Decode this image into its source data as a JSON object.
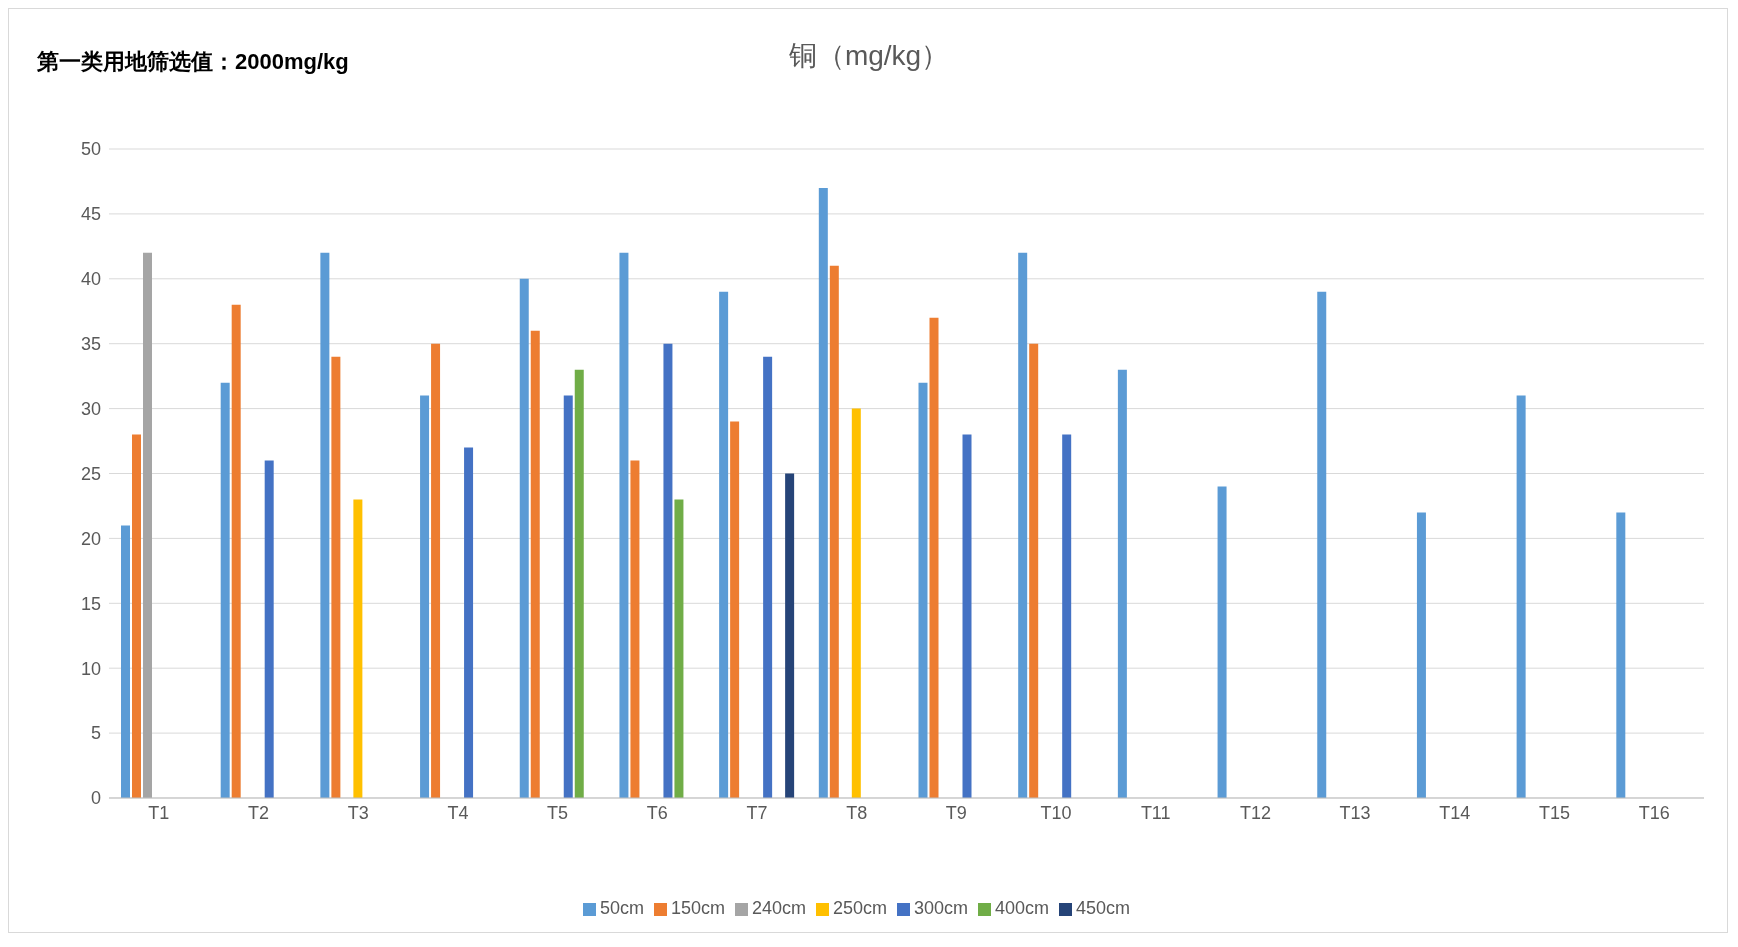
{
  "chart_data": {
    "type": "bar",
    "title": "铜（mg/kg）",
    "annotations": [
      "第一类用地筛选值：2000mg/kg"
    ],
    "categories": [
      "T1",
      "T2",
      "T3",
      "T4",
      "T5",
      "T6",
      "T7",
      "T8",
      "T9",
      "T10",
      "T11",
      "T12",
      "T13",
      "T14",
      "T15",
      "T16"
    ],
    "series": [
      {
        "name": "50cm",
        "color": "#5b9bd5",
        "values": [
          21,
          32,
          42,
          31,
          40,
          42,
          39,
          47,
          32,
          42,
          33,
          24,
          39,
          22,
          31,
          22
        ]
      },
      {
        "name": "150cm",
        "color": "#ed7d31",
        "values": [
          28,
          38,
          34,
          35,
          36,
          26,
          29,
          41,
          37,
          35,
          null,
          null,
          null,
          null,
          null,
          null
        ]
      },
      {
        "name": "240cm",
        "color": "#a5a5a5",
        "values": [
          42,
          null,
          null,
          null,
          null,
          null,
          null,
          null,
          null,
          null,
          null,
          null,
          null,
          null,
          null,
          null
        ]
      },
      {
        "name": "250cm",
        "color": "#ffc000",
        "values": [
          null,
          null,
          23,
          null,
          null,
          null,
          null,
          30,
          null,
          null,
          null,
          null,
          null,
          null,
          null,
          null
        ]
      },
      {
        "name": "300cm",
        "color": "#4472c4",
        "values": [
          null,
          26,
          null,
          27,
          31,
          35,
          34,
          null,
          28,
          28,
          null,
          null,
          null,
          null,
          null,
          null
        ]
      },
      {
        "name": "400cm",
        "color": "#70ad47",
        "values": [
          null,
          null,
          null,
          null,
          33,
          23,
          null,
          null,
          null,
          null,
          null,
          null,
          null,
          null,
          null,
          null
        ]
      },
      {
        "name": "450cm",
        "color": "#264478",
        "values": [
          null,
          null,
          null,
          null,
          null,
          null,
          25,
          null,
          null,
          null,
          null,
          null,
          null,
          null,
          null,
          null
        ]
      }
    ],
    "ylim": [
      0,
      50
    ],
    "yticks": [
      0,
      5,
      10,
      15,
      20,
      25,
      30,
      35,
      40,
      45,
      50
    ],
    "grid": "y",
    "legend": "bottom"
  }
}
